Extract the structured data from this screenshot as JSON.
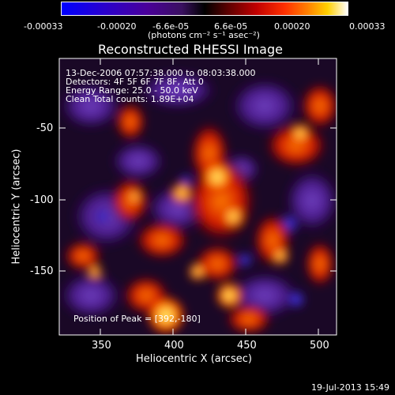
{
  "colorbar": {
    "ticks": [
      "-0.00033",
      "-0.00020",
      "-6.6e-05",
      "6.6e-05",
      "0.00020",
      "0.00033"
    ],
    "unit_label": "(photons cm⁻² s⁻¹ asec⁻²)"
  },
  "chart_data": {
    "type": "heatmap",
    "title": "Reconstructed RHESSI Image",
    "xlabel": "Heliocentric X (arcsec)",
    "ylabel": "Heliocentric Y (arcsec)",
    "xlim": [
      321,
      511
    ],
    "ylim": [
      -195,
      -18
    ],
    "x_ticks": [
      "350",
      "400",
      "450",
      "500"
    ],
    "y_ticks": [
      "-50",
      "-100",
      "-150"
    ],
    "colormap": "blue-purple-black-red-yellow-white",
    "value_range": [
      -0.00033,
      0.00033
    ],
    "peak": [
      392,
      -180
    ]
  },
  "annotations": {
    "time_range": "13-Dec-2006 07:57:38.000 to 08:03:38.000",
    "detectors": "Detectors: 4F 5F 6F 7F 8F, Att 0",
    "energy_range": "Energy Range: 25.0 - 50.0 keV",
    "method_counts": "Clean     Total counts: 1.89E+04",
    "peak_position": "Position of Peak = [392,-180]"
  },
  "footer": {
    "date": "19-Jul-2013 15:49"
  }
}
